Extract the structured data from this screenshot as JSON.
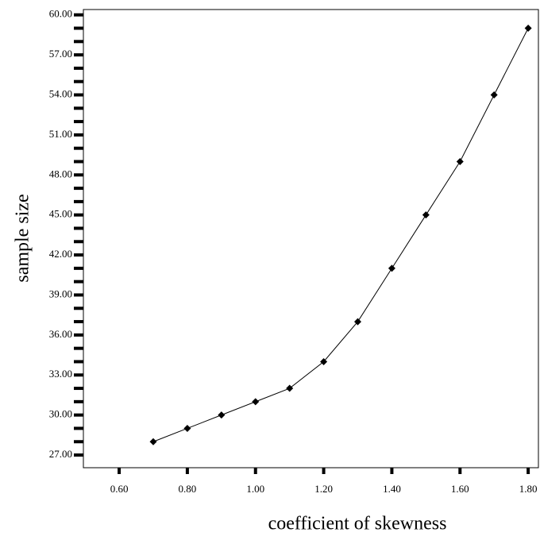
{
  "chart_data": {
    "type": "line",
    "x_label": "coefficient of skewness",
    "y_label": "sample size",
    "x": [
      0.7,
      0.8,
      0.9,
      1.0,
      1.1,
      1.2,
      1.3,
      1.4,
      1.5,
      1.6,
      1.7,
      1.8
    ],
    "series": [
      {
        "color": "#000000",
        "values": [
          28,
          29,
          30,
          31,
          32,
          34,
          37,
          41,
          45,
          49,
          54,
          59
        ]
      }
    ],
    "xlim": [
      0.495,
      1.83
    ],
    "ylim": [
      26.05,
      60.4
    ],
    "xticks": [
      {
        "value": 0.6,
        "label": "0.60"
      },
      {
        "value": 0.8,
        "label": "0.80"
      },
      {
        "value": 1.0,
        "label": "1.00"
      },
      {
        "value": 1.2,
        "label": "1.20"
      },
      {
        "value": 1.4,
        "label": "1.40"
      },
      {
        "value": 1.6,
        "label": "1.60"
      },
      {
        "value": 1.8,
        "label": "1.80"
      }
    ],
    "yticks": [
      {
        "value": 27,
        "label": "27.00"
      },
      {
        "value": 30,
        "label": "30.00"
      },
      {
        "value": 33,
        "label": "33.00"
      },
      {
        "value": 36,
        "label": "36.00"
      },
      {
        "value": 39,
        "label": "39.00"
      },
      {
        "value": 42,
        "label": "42.00"
      },
      {
        "value": 45,
        "label": "45.00"
      },
      {
        "value": 48,
        "label": "48.00"
      },
      {
        "value": 51,
        "label": "51.00"
      },
      {
        "value": 54,
        "label": "54.00"
      },
      {
        "value": 57,
        "label": "57.00"
      },
      {
        "value": 60,
        "label": "60.00"
      }
    ],
    "marker": "diamond",
    "grid": false
  }
}
